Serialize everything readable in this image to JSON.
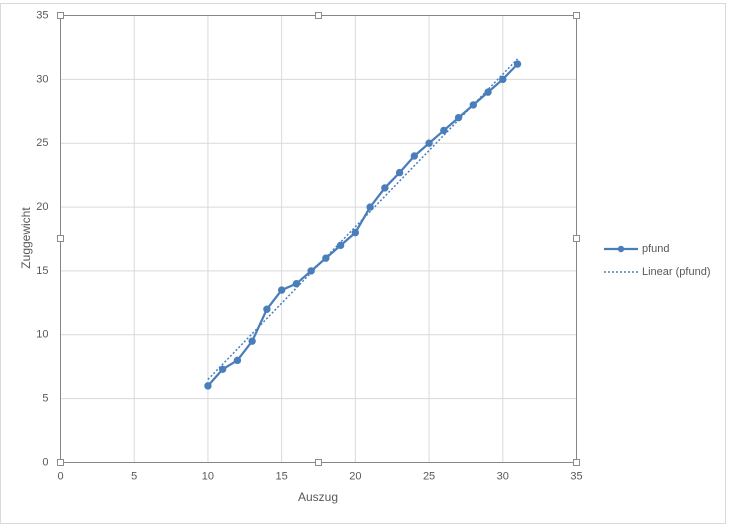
{
  "chart_data": {
    "type": "scatter",
    "x_label": "Auszug",
    "y_label": "Zuggewicht",
    "xlim": [
      0,
      35
    ],
    "xticks": [
      0,
      5,
      10,
      15,
      20,
      25,
      30,
      35
    ],
    "ylim": [
      0,
      35
    ],
    "yticks": [
      0,
      5,
      10,
      15,
      20,
      25,
      30,
      35
    ],
    "grid": true,
    "legend": "right",
    "series": [
      {
        "name": "pfund",
        "color": "#4a7ebb",
        "marker": true,
        "dash": "solid",
        "x": [
          10,
          11,
          12,
          13,
          14,
          15,
          16,
          17,
          18,
          19,
          20,
          21,
          22,
          23,
          24,
          25,
          26,
          27,
          28,
          29,
          30,
          31
        ],
        "values": [
          6.0,
          7.3,
          8.0,
          9.5,
          12.0,
          13.5,
          14.0,
          15.0,
          16.0,
          17.0,
          18.0,
          20.0,
          21.5,
          22.7,
          24.0,
          25.0,
          26.0,
          27.0,
          28.0,
          29.0,
          30.0,
          31.2
        ]
      },
      {
        "name": "Linear (pfund)",
        "color": "#4a7ebb",
        "marker": false,
        "dash": "dotted",
        "x": [
          10,
          31
        ],
        "values": [
          6.5,
          31.6
        ]
      }
    ]
  }
}
